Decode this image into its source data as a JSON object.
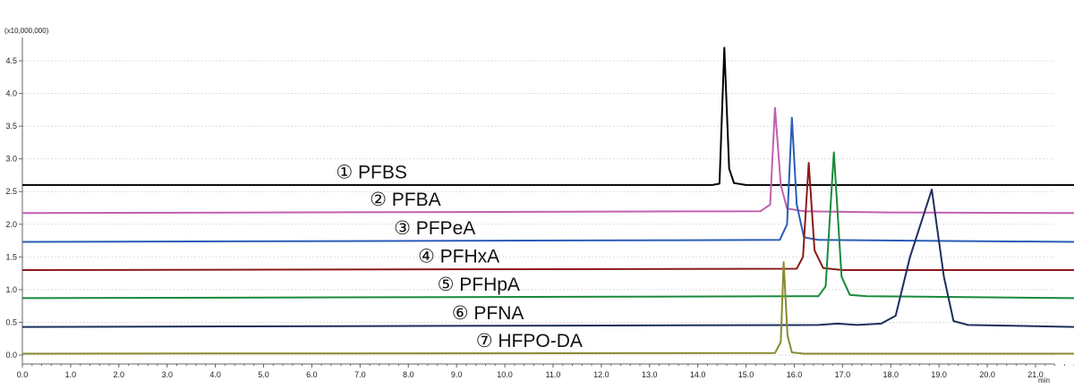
{
  "chart_data": {
    "type": "line",
    "title": "",
    "xlabel": "",
    "ylabel": "",
    "y_multiplier_label": "(x10,000,000)",
    "x_unit_label": "min",
    "xlim": [
      0.0,
      21.8
    ],
    "ylim": [
      -0.05,
      4.8
    ],
    "x_ticks": [
      "0.0",
      "1.0",
      "2.0",
      "3.0",
      "4.0",
      "5.0",
      "6.0",
      "7.0",
      "8.0",
      "9.0",
      "10.0",
      "11.0",
      "12.0",
      "13.0",
      "14.0",
      "15.0",
      "16.0",
      "17.0",
      "18.0",
      "19.0",
      "20.0",
      "21.0"
    ],
    "y_ticks": [
      "0.0",
      "0.5",
      "1.0",
      "1.5",
      "2.0",
      "2.5",
      "3.0",
      "3.5",
      "4.0",
      "4.5"
    ],
    "grid": true,
    "series": [
      {
        "label": "① PFBS",
        "color": "#000000",
        "baseline": 2.6,
        "points": [
          [
            0.0,
            2.6
          ],
          [
            14.3,
            2.6
          ],
          [
            14.45,
            2.62
          ],
          [
            14.55,
            4.7
          ],
          [
            14.65,
            2.85
          ],
          [
            14.75,
            2.63
          ],
          [
            15.0,
            2.6
          ],
          [
            21.8,
            2.6
          ]
        ]
      },
      {
        "label": "② PFBA",
        "color": "#c060b0",
        "baseline": 2.17,
        "points": [
          [
            0.0,
            2.17
          ],
          [
            15.3,
            2.2
          ],
          [
            15.5,
            2.3
          ],
          [
            15.6,
            3.78
          ],
          [
            15.72,
            2.6
          ],
          [
            15.85,
            2.24
          ],
          [
            16.2,
            2.2
          ],
          [
            18.0,
            2.18
          ],
          [
            21.8,
            2.17
          ]
        ]
      },
      {
        "label": "③ PFPeA",
        "color": "#2a5cb8",
        "baseline": 1.73,
        "points": [
          [
            0.0,
            1.73
          ],
          [
            15.7,
            1.76
          ],
          [
            15.85,
            2.0
          ],
          [
            15.95,
            3.63
          ],
          [
            16.05,
            2.3
          ],
          [
            16.2,
            1.8
          ],
          [
            16.5,
            1.76
          ],
          [
            21.8,
            1.73
          ]
        ]
      },
      {
        "label": "④ PFHxA",
        "color": "#8b1a1a",
        "baseline": 1.3,
        "points": [
          [
            0.0,
            1.3
          ],
          [
            16.05,
            1.32
          ],
          [
            16.18,
            1.5
          ],
          [
            16.3,
            2.94
          ],
          [
            16.42,
            1.6
          ],
          [
            16.6,
            1.33
          ],
          [
            17.0,
            1.3
          ],
          [
            21.8,
            1.3
          ]
        ]
      },
      {
        "label": "⑤ PFHpA",
        "color": "#1a8a3a",
        "baseline": 0.87,
        "points": [
          [
            0.0,
            0.87
          ],
          [
            16.5,
            0.9
          ],
          [
            16.65,
            1.05
          ],
          [
            16.82,
            3.1
          ],
          [
            16.98,
            1.2
          ],
          [
            17.15,
            0.92
          ],
          [
            17.5,
            0.9
          ],
          [
            21.8,
            0.87
          ]
        ]
      },
      {
        "label": "⑥ PFNA",
        "color": "#1e2e5e",
        "baseline": 0.43,
        "points": [
          [
            0.0,
            0.43
          ],
          [
            16.5,
            0.46
          ],
          [
            16.9,
            0.48
          ],
          [
            17.3,
            0.46
          ],
          [
            17.8,
            0.48
          ],
          [
            18.1,
            0.6
          ],
          [
            18.4,
            1.5
          ],
          [
            18.85,
            2.53
          ],
          [
            19.1,
            1.2
          ],
          [
            19.3,
            0.52
          ],
          [
            19.6,
            0.46
          ],
          [
            21.8,
            0.43
          ]
        ]
      },
      {
        "label": "⑦ HFPO-DA",
        "color": "#8a8a30",
        "baseline": 0.02,
        "points": [
          [
            0.0,
            0.02
          ],
          [
            15.6,
            0.03
          ],
          [
            15.72,
            0.2
          ],
          [
            15.78,
            1.42
          ],
          [
            15.86,
            0.3
          ],
          [
            15.95,
            0.04
          ],
          [
            16.2,
            0.02
          ],
          [
            21.8,
            0.02
          ]
        ]
      }
    ],
    "annotations": [
      {
        "text": "① PFBS",
        "x": 6.5,
        "y": 2.8
      },
      {
        "text": "② PFBA",
        "x": 7.2,
        "y": 2.38
      },
      {
        "text": "③ PFPeA",
        "x": 7.7,
        "y": 1.94
      },
      {
        "text": "④ PFHxA",
        "x": 8.2,
        "y": 1.51
      },
      {
        "text": "⑤ PFHpA",
        "x": 8.6,
        "y": 1.08
      },
      {
        "text": "⑥ PFNA",
        "x": 8.9,
        "y": 0.64
      },
      {
        "text": "⑦ HFPO-DA",
        "x": 9.4,
        "y": 0.22
      }
    ]
  }
}
